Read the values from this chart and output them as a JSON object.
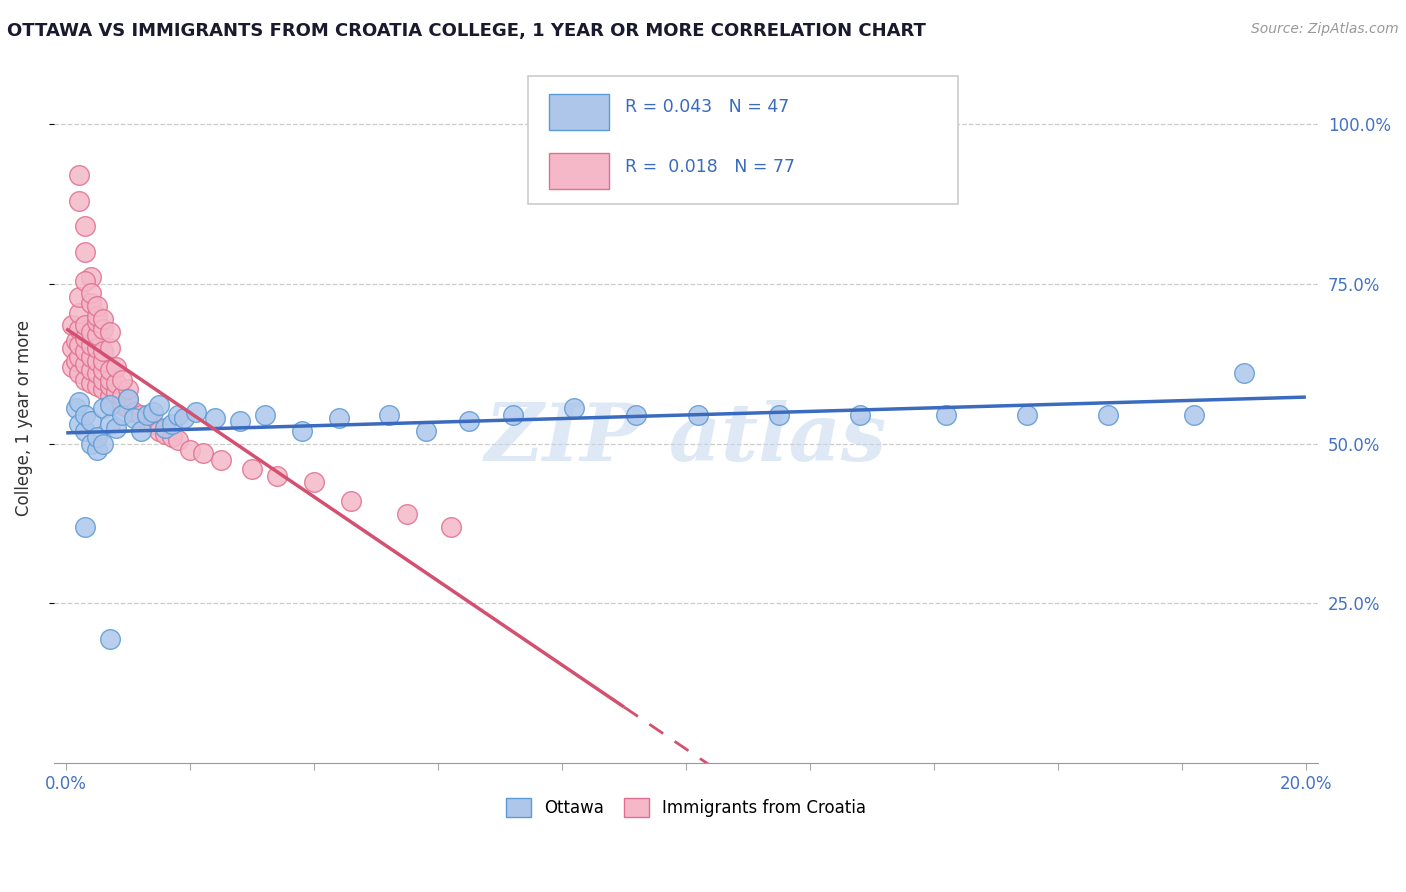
{
  "title": "OTTAWA VS IMMIGRANTS FROM CROATIA COLLEGE, 1 YEAR OR MORE CORRELATION CHART",
  "source_text": "Source: ZipAtlas.com",
  "ylabel": "College, 1 year or more",
  "xlim": [
    -0.002,
    0.202
  ],
  "ylim": [
    0.0,
    1.08
  ],
  "ytick_positions": [
    0.25,
    0.5,
    0.75,
    1.0
  ],
  "ytick_labels": [
    "25.0%",
    "50.0%",
    "75.0%",
    "100.0%"
  ],
  "ottawa_color": "#aec6ea",
  "ottawa_edge_color": "#5b9bd5",
  "croatia_color": "#f4b8c8",
  "croatia_edge_color": "#e07090",
  "trend_blue": "#3a6bbf",
  "trend_pink": "#d45070",
  "R_ottawa": 0.043,
  "N_ottawa": 47,
  "R_croatia": 0.018,
  "N_croatia": 77,
  "watermark": "ZIP atlas",
  "watermark_color": "#c5d8f0",
  "figsize": [
    14.06,
    8.92
  ],
  "dpi": 100,
  "ottawa_x": [
    0.0015,
    0.002,
    0.002,
    0.003,
    0.003,
    0.004,
    0.004,
    0.005,
    0.005,
    0.006,
    0.006,
    0.007,
    0.007,
    0.008,
    0.009,
    0.01,
    0.011,
    0.012,
    0.013,
    0.014,
    0.015,
    0.016,
    0.017,
    0.018,
    0.019,
    0.021,
    0.024,
    0.028,
    0.032,
    0.038,
    0.044,
    0.052,
    0.058,
    0.065,
    0.072,
    0.082,
    0.092,
    0.102,
    0.115,
    0.128,
    0.142,
    0.155,
    0.168,
    0.182,
    0.19,
    0.003,
    0.007
  ],
  "ottawa_y": [
    0.555,
    0.53,
    0.565,
    0.52,
    0.545,
    0.5,
    0.535,
    0.49,
    0.51,
    0.555,
    0.5,
    0.53,
    0.56,
    0.525,
    0.545,
    0.57,
    0.54,
    0.52,
    0.545,
    0.55,
    0.56,
    0.525,
    0.53,
    0.545,
    0.54,
    0.55,
    0.54,
    0.535,
    0.545,
    0.52,
    0.54,
    0.545,
    0.52,
    0.535,
    0.545,
    0.555,
    0.545,
    0.545,
    0.545,
    0.545,
    0.545,
    0.545,
    0.545,
    0.545,
    0.61,
    0.37,
    0.195
  ],
  "croatia_x": [
    0.001,
    0.001,
    0.001,
    0.0015,
    0.0015,
    0.002,
    0.002,
    0.002,
    0.002,
    0.002,
    0.002,
    0.003,
    0.003,
    0.003,
    0.003,
    0.003,
    0.004,
    0.004,
    0.004,
    0.004,
    0.004,
    0.005,
    0.005,
    0.005,
    0.005,
    0.005,
    0.005,
    0.006,
    0.006,
    0.006,
    0.006,
    0.006,
    0.007,
    0.007,
    0.007,
    0.007,
    0.008,
    0.008,
    0.008,
    0.009,
    0.009,
    0.01,
    0.01,
    0.01,
    0.011,
    0.012,
    0.013,
    0.014,
    0.015,
    0.016,
    0.017,
    0.018,
    0.02,
    0.022,
    0.025,
    0.03,
    0.034,
    0.04,
    0.046,
    0.055,
    0.062,
    0.002,
    0.002,
    0.003,
    0.003,
    0.004,
    0.004,
    0.005,
    0.006,
    0.007,
    0.008,
    0.009,
    0.003,
    0.004,
    0.005,
    0.006,
    0.007
  ],
  "croatia_y": [
    0.62,
    0.65,
    0.685,
    0.63,
    0.66,
    0.61,
    0.635,
    0.655,
    0.68,
    0.705,
    0.73,
    0.6,
    0.625,
    0.645,
    0.665,
    0.685,
    0.595,
    0.615,
    0.635,
    0.655,
    0.675,
    0.59,
    0.61,
    0.63,
    0.65,
    0.67,
    0.69,
    0.585,
    0.6,
    0.615,
    0.63,
    0.645,
    0.575,
    0.59,
    0.6,
    0.615,
    0.565,
    0.58,
    0.595,
    0.56,
    0.575,
    0.555,
    0.57,
    0.585,
    0.55,
    0.545,
    0.535,
    0.53,
    0.52,
    0.515,
    0.51,
    0.505,
    0.49,
    0.485,
    0.475,
    0.46,
    0.45,
    0.44,
    0.41,
    0.39,
    0.37,
    0.92,
    0.88,
    0.84,
    0.8,
    0.76,
    0.72,
    0.7,
    0.68,
    0.65,
    0.62,
    0.6,
    0.755,
    0.735,
    0.715,
    0.695,
    0.675
  ]
}
